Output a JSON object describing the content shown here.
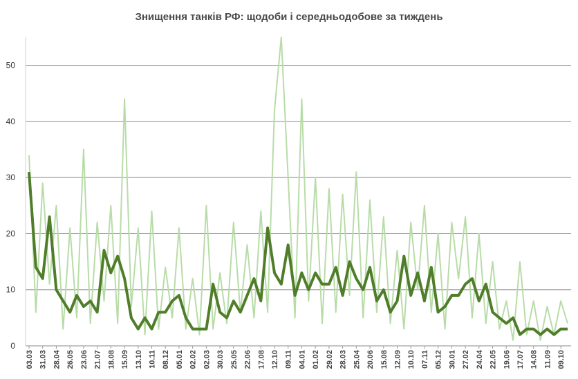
{
  "chart_data": {
    "type": "line",
    "title": "Знищення танків РФ: щодоби і середньодобове за тиждень",
    "categories": [
      "03.03",
      null,
      "31.03",
      null,
      "28.04",
      null,
      "26.05",
      null,
      "23.06",
      null,
      "21.07",
      null,
      "18.08",
      null,
      "15.09",
      null,
      "13.10",
      null,
      "10.11",
      null,
      "08.12",
      null,
      "05.01",
      null,
      "02.02",
      null,
      "02.03",
      null,
      "30.03",
      null,
      "25.05",
      null,
      "22.06",
      null,
      "17.08",
      null,
      "12.10",
      null,
      "09.11",
      null,
      "04.01",
      null,
      "01.02",
      null,
      "29.02",
      null,
      "28.03",
      null,
      "25.04",
      null,
      "20.06",
      null,
      "15.08",
      null,
      "12.09",
      null,
      "10.10",
      null,
      "07.11",
      null,
      "05.12",
      null,
      "30.01",
      null,
      "27.02",
      null,
      "24.04",
      null,
      "22.05",
      null,
      "19.06",
      null,
      "17.07",
      null,
      "14.08",
      null,
      "11.09",
      null,
      "09.10",
      null
    ],
    "series": [
      {
        "color": "#b8dca8",
        "width": 2,
        "values": [
          34,
          6,
          29,
          11,
          25,
          3,
          21,
          5,
          35,
          4,
          22,
          8,
          25,
          4,
          44,
          7,
          21,
          2,
          24,
          3,
          14,
          5,
          21,
          3,
          12,
          2,
          25,
          3,
          13,
          4,
          22,
          6,
          18,
          5,
          24,
          6,
          42,
          55,
          30,
          5,
          44,
          8,
          30,
          4,
          28,
          6,
          27,
          9,
          31,
          5,
          26,
          6,
          23,
          4,
          17,
          3,
          22,
          10,
          25,
          6,
          20,
          3,
          22,
          12,
          23,
          5,
          20,
          4,
          15,
          3,
          8,
          1,
          15,
          2,
          8,
          1,
          7,
          2,
          8,
          4
        ]
      },
      {
        "color": "#4f7d2a",
        "width": 4,
        "values": [
          31,
          14,
          12,
          23,
          10,
          8,
          6,
          9,
          7,
          8,
          6,
          17,
          13,
          16,
          12,
          5,
          3,
          5,
          3,
          6,
          6,
          8,
          9,
          5,
          3,
          3,
          3,
          11,
          6,
          5,
          8,
          6,
          9,
          12,
          8,
          21,
          13,
          11,
          18,
          9,
          13,
          10,
          13,
          11,
          11,
          14,
          9,
          15,
          12,
          10,
          14,
          8,
          10,
          6,
          8,
          16,
          9,
          13,
          8,
          14,
          6,
          7,
          9,
          9,
          11,
          12,
          8,
          11,
          6,
          5,
          4,
          5,
          2,
          3,
          3,
          2,
          3,
          2,
          3,
          3
        ]
      }
    ],
    "ylim": [
      0,
      55
    ],
    "yticks": [
      0,
      10,
      20,
      30,
      40,
      50
    ],
    "grid": true
  }
}
